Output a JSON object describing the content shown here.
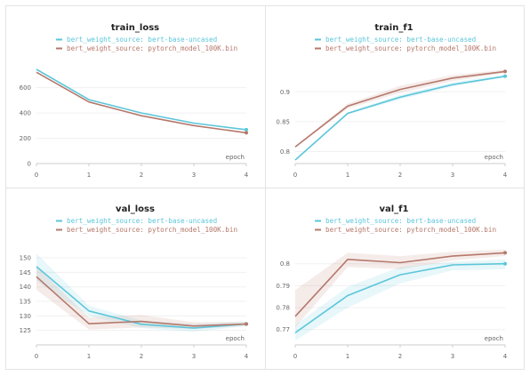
{
  "colors": {
    "series_0": "#5bc6da",
    "series_1": "#b5786b",
    "axis": "#cccccc",
    "grid": "#f0f0f0"
  },
  "legend": {
    "series_0": "bert_weight_source: bert-base-uncased",
    "series_1": "bert_weight_source: pytorch_model_100K.bin"
  },
  "chart_data": [
    {
      "type": "line",
      "title": "train_loss",
      "xlabel": "epoch",
      "x": [
        0,
        1,
        2,
        3,
        4
      ],
      "xticks": [
        "0",
        "1",
        "2",
        "3",
        "4"
      ],
      "ylim": [
        0,
        780
      ],
      "yticks": [
        0,
        200,
        400,
        600
      ],
      "ytick_labels": [
        "0",
        "200",
        "400",
        "600"
      ],
      "series": [
        {
          "name": "bert_weight_source: bert-base-uncased",
          "values": [
            745,
            505,
            400,
            320,
            268
          ]
        },
        {
          "name": "bert_weight_source: pytorch_model_100K.bin",
          "values": [
            722,
            487,
            378,
            300,
            243
          ]
        }
      ]
    },
    {
      "type": "line",
      "title": "train_f1",
      "xlabel": "epoch",
      "x": [
        0,
        1,
        2,
        3,
        4
      ],
      "xticks": [
        "0",
        "1",
        "2",
        "3",
        "4"
      ],
      "ylim": [
        0.78,
        0.945
      ],
      "yticks": [
        0.8,
        0.85,
        0.9
      ],
      "ytick_labels": [
        "0.8",
        "0.85",
        "0.9"
      ],
      "series": [
        {
          "name": "bert_weight_source: bert-base-uncased",
          "values": [
            0.786,
            0.864,
            0.891,
            0.912,
            0.926
          ],
          "band_lower": [
            0.786,
            0.862,
            0.887,
            0.909,
            0.924
          ],
          "band_upper": [
            0.787,
            0.866,
            0.895,
            0.916,
            0.929
          ]
        },
        {
          "name": "bert_weight_source: pytorch_model_100K.bin",
          "values": [
            0.808,
            0.876,
            0.904,
            0.923,
            0.934
          ],
          "band_lower": [
            0.807,
            0.872,
            0.898,
            0.918,
            0.931
          ],
          "band_upper": [
            0.809,
            0.88,
            0.91,
            0.928,
            0.937
          ]
        }
      ]
    },
    {
      "type": "line",
      "title": "val_loss",
      "xlabel": "epoch",
      "x": [
        0,
        1,
        2,
        3,
        4
      ],
      "xticks": [
        "0",
        "1",
        "2",
        "3",
        "4"
      ],
      "ylim": [
        120,
        154
      ],
      "yticks": [
        125,
        130,
        135,
        140,
        145,
        150
      ],
      "ytick_labels": [
        "125",
        "130",
        "135",
        "140",
        "145",
        "150"
      ],
      "series": [
        {
          "name": "bert_weight_source: bert-base-uncased",
          "values": [
            147,
            131.7,
            127.1,
            125.8,
            127.2
          ],
          "band_lower": [
            142,
            130,
            125.8,
            124.5,
            126.5
          ],
          "band_upper": [
            151.5,
            133.5,
            128.4,
            127.2,
            128
          ]
        },
        {
          "name": "bert_weight_source: pytorch_model_100K.bin",
          "values": [
            143.5,
            127.3,
            128.1,
            126.5,
            127.2
          ],
          "band_lower": [
            139,
            125.3,
            126,
            125.5,
            126.5
          ],
          "band_upper": [
            147,
            129.5,
            130.3,
            127.8,
            128
          ]
        }
      ]
    },
    {
      "type": "line",
      "title": "val_f1",
      "xlabel": "epoch",
      "x": [
        0,
        1,
        2,
        3,
        4
      ],
      "xticks": [
        "0",
        "1",
        "2",
        "3",
        "4"
      ],
      "ylim": [
        0.763,
        0.808
      ],
      "yticks": [
        0.77,
        0.78,
        0.79,
        0.8
      ],
      "ytick_labels": [
        "0.77",
        "0.78",
        "0.79",
        "0.8"
      ],
      "series": [
        {
          "name": "bert_weight_source: bert-base-uncased",
          "values": [
            0.7685,
            0.7855,
            0.795,
            0.7995,
            0.8
          ],
          "band_lower": [
            0.765,
            0.78,
            0.791,
            0.797,
            0.7975
          ],
          "band_upper": [
            0.772,
            0.7895,
            0.7985,
            0.801,
            0.802
          ]
        },
        {
          "name": "bert_weight_source: pytorch_model_100K.bin",
          "values": [
            0.776,
            0.802,
            0.8005,
            0.8035,
            0.805
          ],
          "band_lower": [
            0.771,
            0.7985,
            0.7975,
            0.8015,
            0.8035
          ],
          "band_upper": [
            0.788,
            0.805,
            0.8035,
            0.8055,
            0.8065
          ]
        }
      ]
    }
  ]
}
